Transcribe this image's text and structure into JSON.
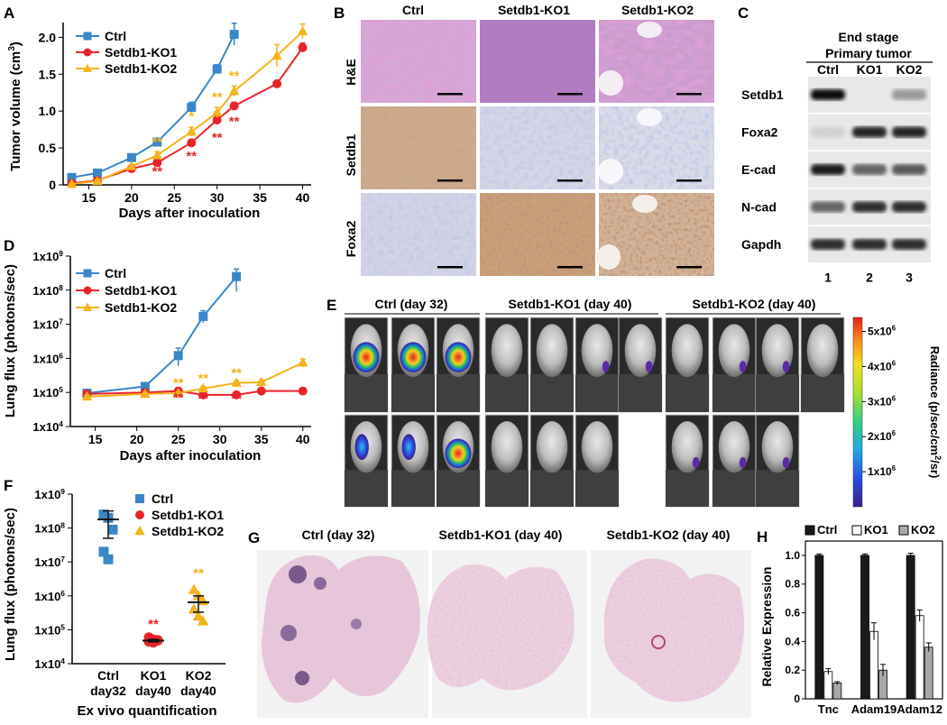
{
  "colors": {
    "ctrl": "#3a86c8",
    "ko1": "#e8232a",
    "ko2": "#f5b21a",
    "black": "#111111"
  },
  "panels": {
    "A": {
      "letter": "A",
      "chart_data": {
        "type": "line",
        "ylabel": "Tumor volume (cm³)",
        "ylabel_main": "Tumor volume (cm",
        "ylabel_sup": "3",
        "ylabel_end": ")",
        "xlabel": "Days after inoculation",
        "xlim": [
          12,
          41
        ],
        "ylim": [
          0,
          2.2
        ],
        "xticks": [
          "15",
          "20",
          "25",
          "30",
          "35",
          "40"
        ],
        "yticks": [
          "0",
          "0.5",
          "1.0",
          "1.5",
          "2.0"
        ],
        "series": [
          {
            "name": "Ctrl",
            "color": "ctrl",
            "marker": "square",
            "x": [
              13,
              16,
              20,
              23,
              27,
              30,
              32
            ],
            "y": [
              0.1,
              0.16,
              0.37,
              0.58,
              1.05,
              1.57,
              2.04
            ],
            "err": [
              0.03,
              0.03,
              0.04,
              0.05,
              0.07,
              0.06,
              0.15
            ]
          },
          {
            "name": "Setdb1-KO1",
            "color": "ko1",
            "marker": "circle",
            "x": [
              13,
              16,
              20,
              23,
              27,
              30,
              32,
              37,
              40
            ],
            "y": [
              0.02,
              0.06,
              0.22,
              0.3,
              0.57,
              0.88,
              1.07,
              1.37,
              1.86
            ],
            "err": [
              0.01,
              0.02,
              0.03,
              0.03,
              0.04,
              0.05,
              0.05,
              0.04,
              0.06
            ]
          },
          {
            "name": "Setdb1-KO2",
            "color": "ko2",
            "marker": "triangle",
            "x": [
              13,
              16,
              20,
              23,
              27,
              30,
              32,
              37,
              40
            ],
            "y": [
              0.01,
              0.05,
              0.25,
              0.4,
              0.72,
              0.98,
              1.27,
              1.75,
              2.08
            ],
            "err": [
              0.01,
              0.02,
              0.03,
              0.05,
              0.06,
              0.07,
              0.07,
              0.15,
              0.1
            ]
          }
        ],
        "annotations": [
          {
            "text": "**",
            "color": "ko2",
            "x": 23,
            "y": 0.52
          },
          {
            "text": "*",
            "color": "ko2",
            "x": 27,
            "y": 0.87
          },
          {
            "text": "**",
            "color": "ko2",
            "x": 30,
            "y": 1.13
          },
          {
            "text": "**",
            "color": "ko2",
            "x": 32,
            "y": 1.42
          },
          {
            "text": "**",
            "color": "ko1",
            "x": 23,
            "y": 0.12
          },
          {
            "text": "**",
            "color": "ko1",
            "x": 27,
            "y": 0.33
          },
          {
            "text": "**",
            "color": "ko1",
            "x": 30,
            "y": 0.58
          },
          {
            "text": "**",
            "color": "ko1",
            "x": 32,
            "y": 0.8
          }
        ]
      }
    },
    "B": {
      "letter": "B",
      "columns": [
        "Ctrl",
        "Setdb1-KO1",
        "Setdb1-KO2"
      ],
      "rows": [
        "H&E",
        "Setdb1",
        "Foxa2"
      ]
    },
    "C": {
      "letter": "C",
      "title1": "End stage",
      "title2": "Primary tumor",
      "lanes": [
        "Ctrl",
        "KO1",
        "KO2"
      ],
      "lane_numbers": [
        "1",
        "2",
        "3"
      ],
      "blots": [
        {
          "label": "Setdb1",
          "bands": [
            1.0,
            0.0,
            0.35
          ]
        },
        {
          "label": "Foxa2",
          "bands": [
            0.1,
            0.9,
            0.9
          ]
        },
        {
          "label": "E-cad",
          "bands": [
            0.95,
            0.6,
            0.65
          ]
        },
        {
          "label": "N-cad",
          "bands": [
            0.6,
            0.85,
            0.85
          ]
        },
        {
          "label": "Gapdh",
          "bands": [
            0.85,
            0.85,
            0.85
          ]
        }
      ]
    },
    "D": {
      "letter": "D",
      "chart_data": {
        "type": "line",
        "scale": "log",
        "ylabel": "Lung flux (photons/sec)",
        "xlabel": "Days after inoculation",
        "xlim": [
          12,
          41
        ],
        "ylim": [
          10000,
          1000000000
        ],
        "xticks": [
          "15",
          "20",
          "25",
          "30",
          "35",
          "40"
        ],
        "yticks": [
          {
            "base": "1x10",
            "exp": "4"
          },
          {
            "base": "1x10",
            "exp": "5"
          },
          {
            "base": "1x10",
            "exp": "6"
          },
          {
            "base": "1x10",
            "exp": "7"
          },
          {
            "base": "1x10",
            "exp": "8"
          },
          {
            "base": "1x10",
            "exp": "9"
          }
        ],
        "series": [
          {
            "name": "Ctrl",
            "color": "ctrl",
            "marker": "square",
            "x": [
              14,
              21,
              25,
              28,
              32
            ],
            "y": [
              95000,
              150000,
              1200000,
              17000000,
              250000000
            ],
            "err_lo": [
              85000,
              135000,
              600000,
              11000000,
              90000000
            ],
            "err_hi": [
              105000,
              165000,
              2000000,
              25000000,
              420000000
            ]
          },
          {
            "name": "Setdb1-KO1",
            "color": "ko1",
            "marker": "circle",
            "x": [
              14,
              21,
              25,
              28,
              32,
              35,
              40
            ],
            "y": [
              90000,
              100000,
              110000,
              85000,
              85000,
              110000,
              110000
            ],
            "err_lo": [
              80000,
              90000,
              95000,
              75000,
              75000,
              100000,
              100000
            ],
            "err_hi": [
              100000,
              110000,
              125000,
              95000,
              95000,
              120000,
              120000
            ]
          },
          {
            "name": "Setdb1-KO2",
            "color": "ko2",
            "marker": "triangle",
            "x": [
              14,
              21,
              25,
              28,
              32,
              35,
              40
            ],
            "y": [
              75000,
              90000,
              95000,
              130000,
              190000,
              200000,
              750000
            ],
            "err_lo": [
              65000,
              80000,
              85000,
              110000,
              160000,
              170000,
              550000
            ],
            "err_hi": [
              85000,
              100000,
              105000,
              150000,
              220000,
              230000,
              950000
            ]
          }
        ],
        "annotations": [
          {
            "text": "**",
            "color": "ko2",
            "x": 25,
            "y": 140000
          },
          {
            "text": "**",
            "color": "ko2",
            "x": 28,
            "y": 190000
          },
          {
            "text": "**",
            "color": "ko2",
            "x": 32,
            "y": 280000
          },
          {
            "text": "**",
            "color": "ko1",
            "x": 25,
            "y": 52000
          },
          {
            "text": "**",
            "color": "ko1",
            "x": 28,
            "y": 48000
          },
          {
            "text": "**",
            "color": "ko1",
            "x": 32,
            "y": 48000
          }
        ]
      }
    },
    "E": {
      "letter": "E",
      "groups": [
        "Ctrl (day 32)",
        "Setdb1-KO1 (day 40)",
        "Setdb1-KO2 (day 40)"
      ],
      "colorbar": {
        "label_main": "Radiance (p/sec/cm",
        "label_sup": "2",
        "label_end": "/sr)",
        "ticks": [
          {
            "base": "5x10",
            "exp": "6",
            "value": 5
          },
          {
            "base": "4x10",
            "exp": "6",
            "value": 4
          },
          {
            "base": "3x10",
            "exp": "6",
            "value": 3
          },
          {
            "base": "2x10",
            "exp": "6",
            "value": 2
          },
          {
            "base": "1x10",
            "exp": "6",
            "value": 1
          }
        ]
      }
    },
    "F": {
      "letter": "F",
      "chart_data": {
        "type": "scatter",
        "scale": "log",
        "ylabel": "Lung flux (photons/sec)",
        "xlabel": "Ex vivo quantification",
        "ylim": [
          10000,
          1000000000
        ],
        "categories": [
          [
            "Ctrl",
            "day32"
          ],
          [
            "KO1",
            "day40"
          ],
          [
            "KO2",
            "day40"
          ]
        ],
        "yticks": [
          {
            "base": "1x10",
            "exp": "4"
          },
          {
            "base": "1x10",
            "exp": "5"
          },
          {
            "base": "1x10",
            "exp": "6"
          },
          {
            "base": "1x10",
            "exp": "7"
          },
          {
            "base": "1x10",
            "exp": "8"
          },
          {
            "base": "1x10",
            "exp": "9"
          }
        ],
        "series": [
          {
            "name": "Ctrl",
            "color": "ctrl",
            "marker": "square",
            "points": [
              250000000,
              200000000,
              90000000,
              20000000,
              12000000
            ],
            "mean": 180000000,
            "err_lo": 50000000,
            "err_hi": 320000000
          },
          {
            "name": "Setdb1-KO1",
            "color": "ko1",
            "marker": "circle",
            "points": [
              60000,
              52000,
              48000,
              45000,
              42000,
              50000
            ],
            "mean": 48000,
            "err_lo": 44000,
            "err_hi": 52000
          },
          {
            "name": "Setdb1-KO2",
            "color": "ko2",
            "marker": "triangle",
            "points": [
              1500000,
              1000000,
              700000,
              400000,
              250000,
              180000
            ],
            "mean": 650000,
            "err_lo": 330000,
            "err_hi": 1000000
          }
        ],
        "annotations": [
          {
            "text": "**",
            "color": "ko1",
            "cat": 1,
            "y": 110000
          },
          {
            "text": "**",
            "color": "ko2",
            "cat": 2,
            "y": 3500000
          }
        ]
      }
    },
    "G": {
      "letter": "G",
      "groups": [
        "Ctrl (day 32)",
        "Setdb1-KO1 (day 40)",
        "Setdb1-KO2 (day 40)"
      ]
    },
    "H": {
      "letter": "H",
      "chart_data": {
        "type": "bar",
        "ylabel": "Relative Expression",
        "ylim": [
          0,
          1.1
        ],
        "yticks": [
          "0",
          "0.2",
          "0.4",
          "0.6",
          "0.8",
          "1.0"
        ],
        "categories": [
          "Tnc",
          "Adam19",
          "Adam12"
        ],
        "series": [
          {
            "name": "Ctrl",
            "fill": "#1a1a1a",
            "values": [
              1.0,
              1.0,
              1.0
            ],
            "err": [
              0.01,
              0.01,
              0.015
            ]
          },
          {
            "name": "KO1",
            "fill": "#ffffff",
            "values": [
              0.19,
              0.47,
              0.58
            ],
            "err": [
              0.02,
              0.06,
              0.04
            ]
          },
          {
            "name": "KO2",
            "fill": "#a8a8a8",
            "values": [
              0.11,
              0.2,
              0.36
            ],
            "err": [
              0.01,
              0.04,
              0.03
            ]
          }
        ]
      }
    }
  }
}
